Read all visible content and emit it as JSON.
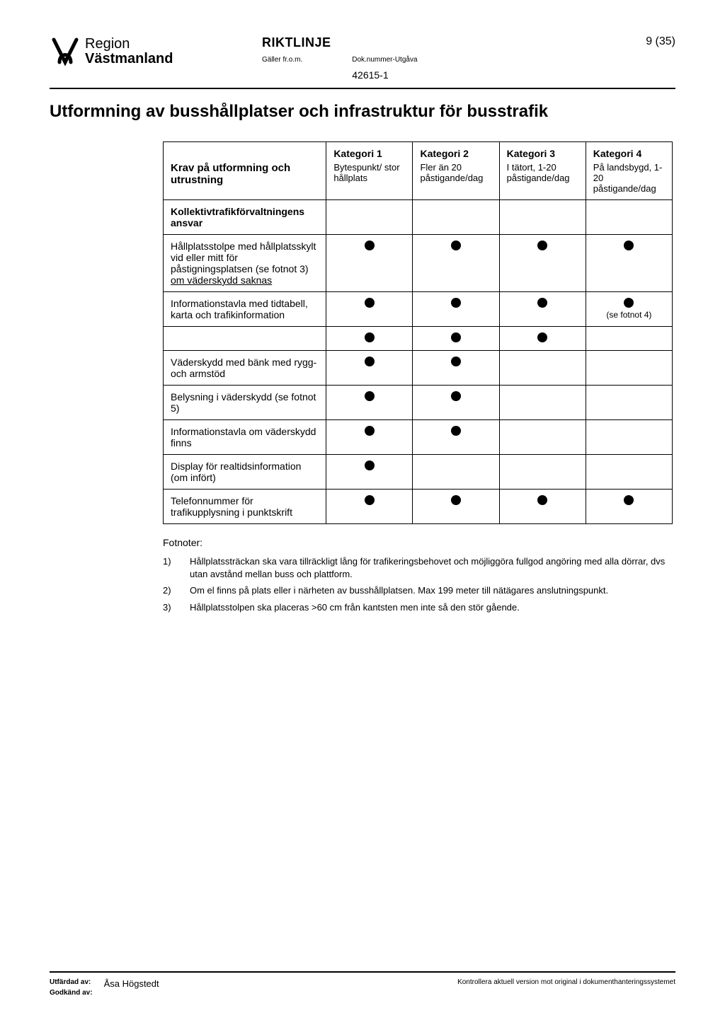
{
  "header": {
    "logo_line1": "Region",
    "logo_line2": "Västmanland",
    "riktlinje": "RIKTLINJE",
    "page_num": "9 (35)",
    "meta_label_galler": "Gäller fr.o.m.",
    "meta_label_dok": "Dok.nummer-Utgåva",
    "docnum": "42615-1"
  },
  "title": "Utformning av busshållplatser och infrastruktur för busstrafik",
  "table": {
    "head_row1": [
      "",
      "Kategori 1",
      "Kategori 2",
      "Kategori 3",
      "Kategori 4"
    ],
    "head_row2": [
      "Krav på utformning och utrustning",
      "Bytespunkt/ stor hållplats",
      "Fler än 20 påstigande/dag",
      "I tätort, 1-20 påstigande/dag",
      "På landsbygd, 1-20 påstigande/dag"
    ],
    "section_label": "Kollektivtrafikförvaltningens ansvar",
    "rows": [
      {
        "label_html": "Hållplatsstolpe med hållplatsskylt vid eller mitt för påstigningsplatsen (se fotnot 3) <span class='underline'>om väderskydd saknas</span>",
        "c1": true,
        "c2": true,
        "c3": true,
        "c4": true,
        "c4_note": ""
      },
      {
        "label_html": "Informationstavla med tidtabell, karta och trafikinformation",
        "c1": true,
        "c2": true,
        "c3": true,
        "c4": true,
        "c4_note": "(se fotnot 4)"
      },
      {
        "label_html": "",
        "c1": true,
        "c2": true,
        "c3": true,
        "c4": false
      },
      {
        "label_html": "Väderskydd med bänk med rygg- och armstöd",
        "c1": true,
        "c2": true,
        "c3": false,
        "c4": false
      },
      {
        "label_html": "Belysning i väderskydd (se fotnot 5)",
        "c1": true,
        "c2": true,
        "c3": false,
        "c4": false
      },
      {
        "label_html": "Informationstavla om väderskydd finns",
        "c1": true,
        "c2": true,
        "c3": false,
        "c4": false
      },
      {
        "label_html": "Display för realtidsinformation (om infört)",
        "c1": true,
        "c2": false,
        "c3": false,
        "c4": false
      },
      {
        "label_html": "Telefonnummer för trafikupplysning i punktskrift",
        "c1": true,
        "c2": true,
        "c3": true,
        "c4": true
      }
    ]
  },
  "footnotes": {
    "title": "Fotnoter:",
    "items": [
      {
        "n": "1)",
        "text": "Hållplatssträckan ska vara tillräckligt lång för trafikeringsbehovet och möjliggöra fullgod angöring med alla dörrar, dvs utan avstånd mellan buss och plattform."
      },
      {
        "n": "2)",
        "text": "Om el finns på plats eller i närheten av busshållplatsen. Max 199 meter till nätägares anslutningspunkt."
      },
      {
        "n": "3)",
        "text": "Hållplatsstolpen ska placeras >60 cm från kantsten men inte så den stör gående."
      }
    ]
  },
  "footer": {
    "label_utf": "Utfärdad av:",
    "label_god": "Godkänd av:",
    "name": "Åsa Högstedt",
    "right": "Kontrollera aktuell version mot original i dokumenthanteringssystemet"
  }
}
